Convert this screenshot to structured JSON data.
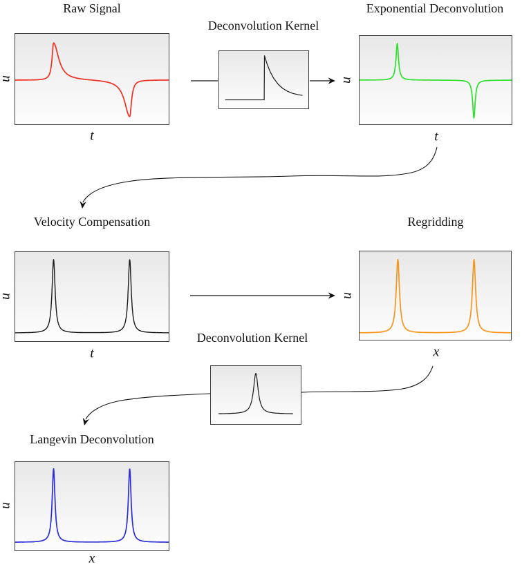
{
  "figure": {
    "background": "#ffffff",
    "border_color": "#3d3d3d",
    "arrow_color": "#111111",
    "pipeline_order": [
      "Raw Signal",
      "Deconvolution Kernel",
      "Exponential Deconvolution",
      "Velocity Compensation",
      "Regridding",
      "Deconvolution Kernel",
      "Langevin Deconvolution"
    ],
    "edges": [
      {
        "from": "raw-signal",
        "to": "kernel-exponential",
        "style": "straight"
      },
      {
        "from": "kernel-exponential",
        "to": "exponential-deconvolution",
        "style": "straight-arrow"
      },
      {
        "from": "exponential-deconvolution",
        "to": "velocity-compensation",
        "style": "s-curve-arrow"
      },
      {
        "from": "velocity-compensation",
        "to": "regridding",
        "style": "straight-arrow"
      },
      {
        "from": "regridding",
        "to": "langevin-deconvolution",
        "via": "kernel-langevin",
        "style": "s-curve-arrow"
      }
    ]
  },
  "chart_data": [
    {
      "id": "raw-signal",
      "type": "line",
      "title": "Raw Signal",
      "xlabel": "t",
      "ylabel": "u",
      "color": "#ee3124",
      "stroke": 1.7,
      "kind": "peaks",
      "baseline": 0.511,
      "peaks": [
        {
          "pos": 0.25,
          "amp": 0.413,
          "wl": 0.012,
          "wr": 0.04
        },
        {
          "pos": 0.746,
          "amp": -0.406,
          "wl": 0.04,
          "wr": 0.014
        }
      ],
      "description": "asymmetric positive pulse at x~0.25 and negative pulse at x~0.75 about a flat baseline"
    },
    {
      "id": "kernel-exponential",
      "type": "line",
      "title": "Deconvolution Kernel",
      "color": "#1a1a1a",
      "stroke": 1.2,
      "kind": "poly",
      "points": [
        [
          0.07,
          0.85
        ],
        [
          0.505,
          0.85
        ],
        [
          0.508,
          0.08
        ],
        [
          0.52,
          0.143
        ],
        [
          0.54,
          0.237
        ],
        [
          0.57,
          0.354
        ],
        [
          0.61,
          0.472
        ],
        [
          0.66,
          0.576
        ],
        [
          0.71,
          0.647
        ],
        [
          0.76,
          0.696
        ],
        [
          0.82,
          0.735
        ],
        [
          0.88,
          0.759
        ],
        [
          0.93,
          0.772
        ]
      ],
      "description": "causal kernel: flat zero level, vertical jump, exponential decay"
    },
    {
      "id": "exponential-deconvolution",
      "type": "line",
      "title": "Exponential Deconvolution",
      "xlabel": "t",
      "ylabel": "u",
      "color": "#2fe02f",
      "stroke": 1.7,
      "kind": "peaks",
      "baseline": 0.5,
      "peaks": [
        {
          "pos": 0.248,
          "amp": 0.415,
          "w": 0.01
        },
        {
          "pos": 0.752,
          "amp": -0.43,
          "w": 0.01
        }
      ],
      "description": "sharp symmetric positive spike at x~0.25 and negative spike at x~0.75"
    },
    {
      "id": "velocity-compensation",
      "type": "line",
      "title": "Velocity Compensation",
      "xlabel": "t",
      "ylabel": "u",
      "color": "#1a1a1a",
      "stroke": 1.4,
      "kind": "peaks",
      "baseline": 0.908,
      "peaks": [
        {
          "pos": 0.25,
          "amp": 0.824,
          "w": 0.012
        },
        {
          "pos": 0.746,
          "amp": 0.824,
          "w": 0.012
        }
      ],
      "description": "two upward narrow peaks above a low baseline"
    },
    {
      "id": "regridding",
      "type": "line",
      "title": "Regridding",
      "xlabel": "x",
      "ylabel": "u",
      "color": "#f6961e",
      "stroke": 1.7,
      "kind": "peaks",
      "baseline": 0.923,
      "peaks": [
        {
          "pos": 0.253,
          "amp": 0.831,
          "w": 0.013
        },
        {
          "pos": 0.756,
          "amp": 0.831,
          "w": 0.013
        }
      ],
      "description": "two upward narrow peaks above a low baseline"
    },
    {
      "id": "kernel-langevin",
      "type": "line",
      "title": "Deconvolution Kernel",
      "color": "#1a1a1a",
      "stroke": 1.2,
      "kind": "peaks",
      "baseline": 0.826,
      "x0": 0.09,
      "x1": 0.91,
      "peaks": [
        {
          "pos": 0.5,
          "amp": 0.698,
          "w": 0.032
        }
      ],
      "description": "single narrow symmetric peak on a flat baseline"
    },
    {
      "id": "langevin-deconvolution",
      "type": "line",
      "title": "Langevin Deconvolution",
      "xlabel": "x",
      "ylabel": "u",
      "color": "#2e2ed8",
      "stroke": 1.7,
      "kind": "peaks",
      "baseline": 0.908,
      "peaks": [
        {
          "pos": 0.25,
          "amp": 0.831,
          "w": 0.011
        },
        {
          "pos": 0.746,
          "amp": 0.831,
          "w": 0.011
        }
      ],
      "description": "two upward narrow peaks above a low baseline"
    }
  ]
}
